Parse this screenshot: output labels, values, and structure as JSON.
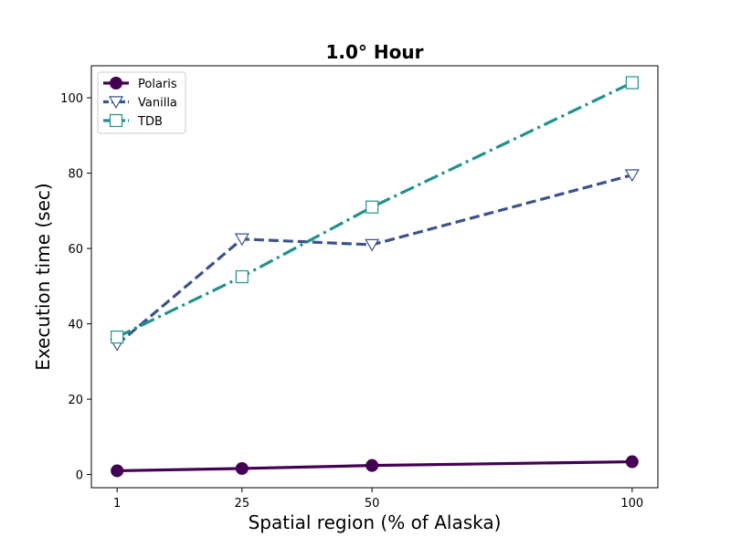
{
  "chart_data": {
    "type": "line",
    "title": "1.0° Hour",
    "xlabel": "Spatial region (% of Alaska)",
    "ylabel": "Execution time (sec)",
    "x": [
      1,
      25,
      50,
      100
    ],
    "xlim": [
      -3.95,
      104.95
    ],
    "ylim": [
      -3.5,
      108.5
    ],
    "x_ticks": [
      1,
      25,
      50,
      100
    ],
    "y_ticks": [
      0,
      20,
      40,
      60,
      80,
      100
    ],
    "grid": false,
    "legend_position": "upper-left",
    "series": [
      {
        "name": "Polaris",
        "values": [
          1.0,
          1.6,
          2.4,
          3.4
        ],
        "color": "#440154",
        "line_style": "solid",
        "marker": "filled-circle"
      },
      {
        "name": "Vanilla",
        "values": [
          34.5,
          62.5,
          61.0,
          79.5
        ],
        "color": "#3b528b",
        "line_style": "dashed",
        "marker": "open-triangle-down"
      },
      {
        "name": "TDB",
        "values": [
          36.5,
          52.5,
          71.0,
          104.0
        ],
        "color": "#21918c",
        "line_style": "dash-dot",
        "marker": "open-square"
      }
    ]
  }
}
